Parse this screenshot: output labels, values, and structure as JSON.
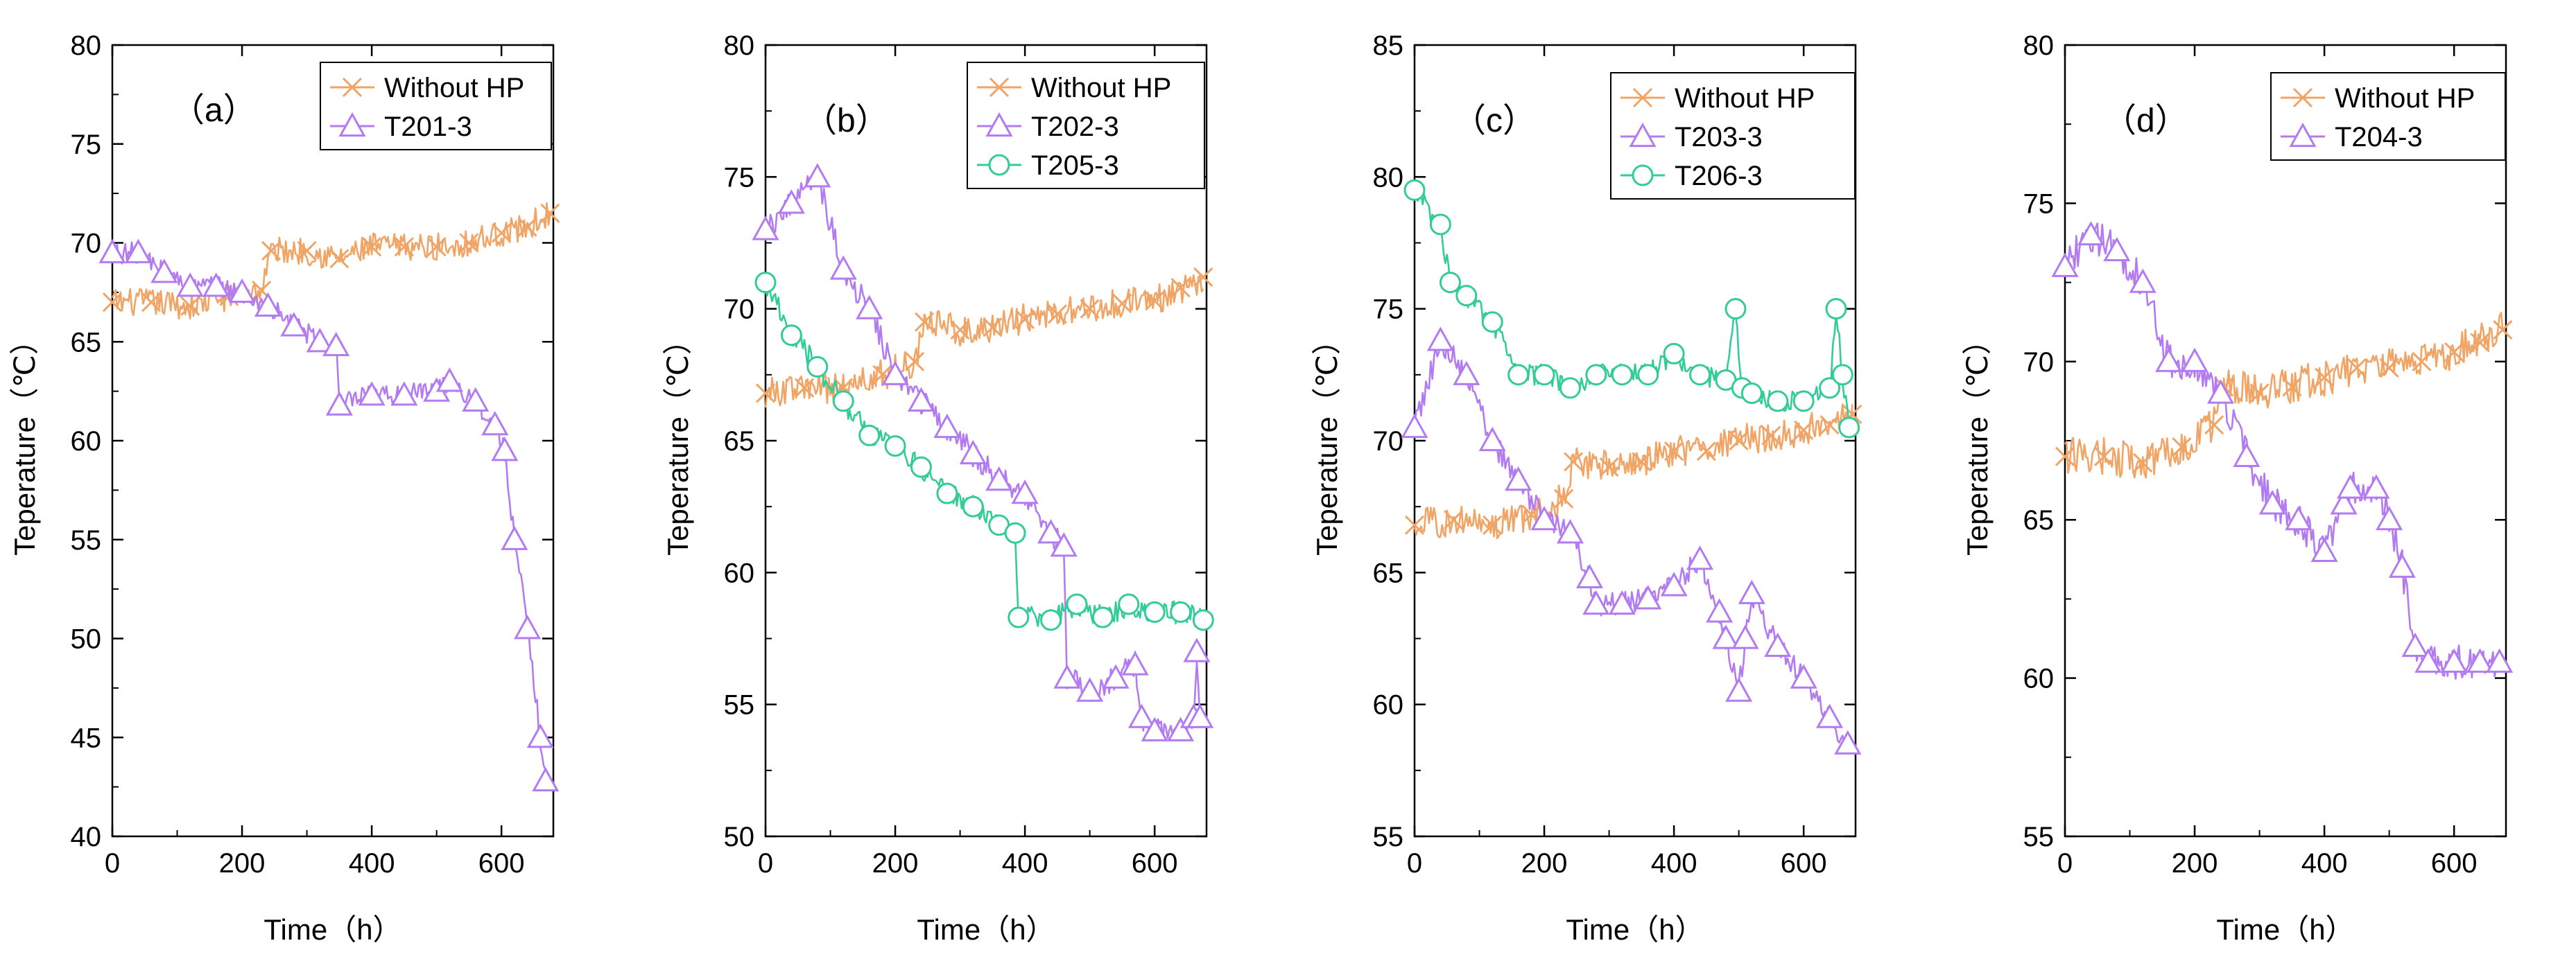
{
  "chart_data": [
    {
      "type": "line",
      "panel_label": "（a）",
      "xlabel": "Time（h）",
      "ylabel": "Teperature（℃）",
      "xlim": [
        0,
        680
      ],
      "ylim": [
        40,
        80
      ],
      "xticks": [
        0,
        200,
        400,
        600
      ],
      "yticks": [
        40,
        45,
        50,
        55,
        60,
        65,
        70,
        75,
        80
      ],
      "legend_position": "top-right",
      "series": [
        {
          "name": "Without HP",
          "color": "#F0A465",
          "marker": "cross",
          "noise": 1.4,
          "x": [
            0,
            60,
            120,
            180,
            230,
            245,
            300,
            350,
            400,
            450,
            500,
            550,
            600,
            640,
            675
          ],
          "y": [
            67.0,
            67.0,
            66.8,
            67.3,
            67.6,
            69.6,
            69.6,
            69.2,
            69.8,
            69.8,
            69.8,
            70.0,
            70.5,
            70.8,
            71.5
          ]
        },
        {
          "name": "T201-3",
          "color": "#B37BF2",
          "marker": "triangle",
          "noise": 1.1,
          "x": [
            0,
            40,
            80,
            120,
            160,
            200,
            240,
            280,
            320,
            345,
            350,
            400,
            450,
            500,
            520,
            560,
            590,
            605,
            620,
            640,
            660,
            668
          ],
          "y": [
            69.5,
            69.5,
            68.5,
            67.8,
            67.8,
            67.5,
            66.8,
            65.8,
            65.0,
            64.8,
            61.8,
            62.3,
            62.3,
            62.5,
            63.0,
            62.0,
            60.8,
            59.5,
            55.0,
            50.5,
            45.0,
            42.8
          ]
        }
      ]
    },
    {
      "type": "line",
      "panel_label": "（b）",
      "xlabel": "Time（h）",
      "ylabel": "Teperature（℃）",
      "xlim": [
        0,
        680
      ],
      "ylim": [
        50,
        80
      ],
      "xticks": [
        0,
        200,
        400,
        600
      ],
      "yticks": [
        50,
        55,
        60,
        65,
        70,
        75,
        80
      ],
      "legend_position": "top-right",
      "series": [
        {
          "name": "Without HP",
          "color": "#F0A465",
          "marker": "cross",
          "noise": 1.2,
          "x": [
            0,
            60,
            120,
            180,
            230,
            245,
            300,
            350,
            400,
            450,
            500,
            550,
            600,
            640,
            675
          ],
          "y": [
            66.8,
            67.0,
            67.0,
            67.5,
            68.0,
            69.5,
            69.2,
            69.3,
            69.6,
            69.8,
            70.0,
            70.2,
            70.3,
            70.8,
            71.2
          ]
        },
        {
          "name": "T202-3",
          "color": "#B37BF2",
          "marker": "triangle",
          "noise": 1.0,
          "x": [
            0,
            40,
            80,
            120,
            160,
            200,
            240,
            280,
            320,
            360,
            400,
            440,
            460,
            465,
            500,
            540,
            570,
            580,
            600,
            640,
            660,
            665,
            670
          ],
          "y": [
            73.0,
            74.0,
            75.0,
            71.5,
            70.0,
            67.5,
            66.5,
            65.5,
            64.5,
            63.5,
            63.0,
            61.5,
            61.0,
            56.0,
            55.5,
            56.0,
            56.5,
            54.5,
            54.0,
            54.0,
            54.5,
            57.0,
            54.5
          ]
        },
        {
          "name": "T205-3",
          "color": "#33CC99",
          "marker": "circle",
          "noise": 0.9,
          "x": [
            0,
            40,
            80,
            120,
            160,
            200,
            240,
            280,
            320,
            360,
            385,
            390,
            440,
            480,
            520,
            560,
            600,
            640,
            675
          ],
          "y": [
            71.0,
            69.0,
            67.8,
            66.5,
            65.2,
            64.8,
            64.0,
            63.0,
            62.5,
            61.8,
            61.5,
            58.3,
            58.2,
            58.8,
            58.3,
            58.8,
            58.5,
            58.5,
            58.2
          ]
        }
      ]
    },
    {
      "type": "line",
      "panel_label": "（c）",
      "xlabel": "Time（h）",
      "ylabel": "Teperature（℃）",
      "xlim": [
        0,
        680
      ],
      "ylim": [
        55,
        85
      ],
      "xticks": [
        0,
        200,
        400,
        600
      ],
      "yticks": [
        55,
        60,
        65,
        70,
        75,
        80,
        85
      ],
      "legend_position": "top-right",
      "series": [
        {
          "name": "Without HP",
          "color": "#F0A465",
          "marker": "cross",
          "noise": 1.2,
          "x": [
            0,
            60,
            120,
            180,
            230,
            245,
            300,
            350,
            400,
            450,
            500,
            550,
            600,
            640,
            675
          ],
          "y": [
            66.8,
            67.0,
            66.8,
            67.2,
            67.8,
            69.2,
            69.0,
            69.2,
            69.6,
            69.6,
            70.0,
            70.2,
            70.4,
            70.6,
            71.0
          ]
        },
        {
          "name": "T203-3",
          "color": "#B37BF2",
          "marker": "triangle",
          "noise": 0.9,
          "x": [
            0,
            40,
            80,
            120,
            160,
            200,
            240,
            270,
            280,
            320,
            360,
            400,
            440,
            470,
            480,
            500,
            510,
            520,
            560,
            600,
            640,
            668
          ],
          "y": [
            70.5,
            73.8,
            72.5,
            70.0,
            68.5,
            67.0,
            66.5,
            64.8,
            63.8,
            63.8,
            64.0,
            64.5,
            65.5,
            63.5,
            62.5,
            60.5,
            62.5,
            64.2,
            62.2,
            61.0,
            59.5,
            58.5
          ]
        },
        {
          "name": "T206-3",
          "color": "#33CC99",
          "marker": "circle",
          "noise": 0.8,
          "x": [
            0,
            40,
            55,
            80,
            120,
            160,
            200,
            240,
            280,
            320,
            360,
            400,
            440,
            480,
            495,
            505,
            520,
            560,
            600,
            640,
            650,
            660,
            670
          ],
          "y": [
            79.5,
            78.2,
            76.0,
            75.5,
            74.5,
            72.5,
            72.5,
            72.0,
            72.5,
            72.5,
            72.5,
            73.3,
            72.5,
            72.3,
            75.0,
            72.0,
            71.8,
            71.5,
            71.5,
            72.0,
            75.0,
            72.5,
            70.5
          ]
        }
      ]
    },
    {
      "type": "line",
      "panel_label": "（d）",
      "xlabel": "Time（h）",
      "ylabel": "Teperature（℃）",
      "xlim": [
        0,
        680
      ],
      "ylim": [
        55,
        80
      ],
      "xticks": [
        0,
        200,
        400,
        600
      ],
      "yticks": [
        55,
        60,
        65,
        70,
        75,
        80
      ],
      "legend_position": "top-right",
      "series": [
        {
          "name": "Without HP",
          "color": "#F0A465",
          "marker": "cross",
          "noise": 1.2,
          "x": [
            0,
            60,
            120,
            180,
            230,
            245,
            300,
            350,
            400,
            450,
            500,
            550,
            600,
            640,
            675
          ],
          "y": [
            67.0,
            67.0,
            66.8,
            67.3,
            68.0,
            69.2,
            69.0,
            69.2,
            69.5,
            69.8,
            69.8,
            70.0,
            70.3,
            70.6,
            71.0
          ]
        },
        {
          "name": "T204-3",
          "color": "#B37BF2",
          "marker": "triangle",
          "noise": 1.1,
          "x": [
            0,
            40,
            80,
            120,
            160,
            200,
            240,
            280,
            320,
            360,
            400,
            430,
            440,
            480,
            500,
            520,
            540,
            560,
            600,
            640,
            670
          ],
          "y": [
            73.0,
            74.0,
            73.5,
            72.5,
            70.0,
            70.0,
            69.0,
            67.0,
            65.5,
            65.0,
            64.0,
            65.5,
            66.0,
            66.0,
            65.0,
            63.5,
            61.0,
            60.5,
            60.5,
            60.5,
            60.5
          ]
        }
      ]
    }
  ]
}
